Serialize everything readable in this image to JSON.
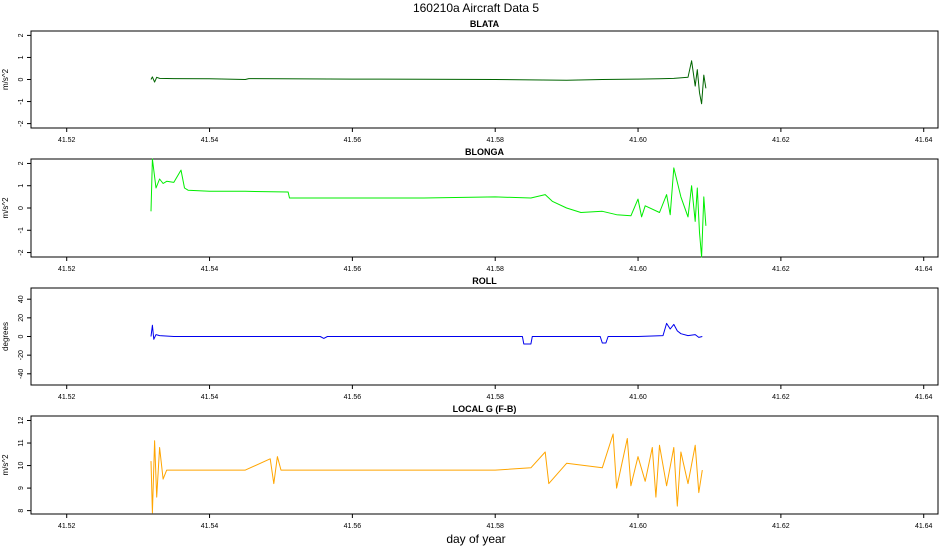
{
  "page": {
    "title": "160210a   Aircraft Data 5",
    "xlabel": "day of year"
  },
  "colors": {
    "blata": "#006400",
    "blonga": "#00ee00",
    "roll": "#0000ee",
    "localg": "#ffa500"
  },
  "chart_data": [
    {
      "type": "line",
      "title": "BLATA",
      "ylabel": "m/s^2",
      "xlim": [
        41.515,
        41.642
      ],
      "ylim": [
        -2.2,
        2.2
      ],
      "xticks": [
        41.52,
        41.54,
        41.56,
        41.58,
        41.6,
        41.62,
        41.64
      ],
      "xtick_labels": [
        "41.52",
        "41.54",
        "41.56",
        "41.58",
        "41.60",
        "41.62",
        "41.64"
      ],
      "yticks": [
        -2,
        -1,
        0,
        1,
        2
      ],
      "ytick_labels": [
        "-2",
        "-1",
        "0",
        "1",
        "2"
      ],
      "series": [
        {
          "color_key": "blata",
          "x": [
            41.5318,
            41.532,
            41.5323,
            41.5326,
            41.533,
            41.535,
            41.54,
            41.545,
            41.5455,
            41.55,
            41.56,
            41.57,
            41.58,
            41.585,
            41.59,
            41.595,
            41.6,
            41.603,
            41.605,
            41.607,
            41.6075,
            41.608,
            41.6083,
            41.6086,
            41.6089,
            41.6092,
            41.6095
          ],
          "y": [
            0.0,
            0.12,
            -0.12,
            0.1,
            0.05,
            0.04,
            0.03,
            0.0,
            0.04,
            0.03,
            0.02,
            0.01,
            0.0,
            -0.02,
            -0.03,
            0.0,
            0.02,
            0.03,
            0.05,
            0.1,
            0.85,
            -0.3,
            0.45,
            -0.6,
            -1.1,
            0.2,
            -0.4
          ]
        }
      ]
    },
    {
      "type": "line",
      "title": "BLONGA",
      "ylabel": "m/s^2",
      "xlim": [
        41.515,
        41.642
      ],
      "ylim": [
        -2.2,
        2.2
      ],
      "xticks": [
        41.52,
        41.54,
        41.56,
        41.58,
        41.6,
        41.62,
        41.64
      ],
      "xtick_labels": [
        "41.52",
        "41.54",
        "41.56",
        "41.58",
        "41.60",
        "41.62",
        "41.64"
      ],
      "yticks": [
        -2,
        -1,
        0,
        1,
        2
      ],
      "ytick_labels": [
        "-2",
        "-1",
        "0",
        "1",
        "2"
      ],
      "series": [
        {
          "color_key": "blonga",
          "x": [
            41.5318,
            41.532,
            41.5325,
            41.533,
            41.5335,
            41.534,
            41.535,
            41.536,
            41.5365,
            41.537,
            41.54,
            41.545,
            41.551,
            41.5512,
            41.56,
            41.57,
            41.58,
            41.585,
            41.587,
            41.588,
            41.59,
            41.592,
            41.595,
            41.597,
            41.599,
            41.6,
            41.6005,
            41.601,
            41.603,
            41.604,
            41.6045,
            41.605,
            41.606,
            41.607,
            41.6075,
            41.608,
            41.6083,
            41.6086,
            41.6089,
            41.6092,
            41.6095
          ],
          "y": [
            -0.15,
            2.2,
            0.9,
            1.3,
            1.1,
            1.2,
            1.15,
            1.7,
            0.9,
            0.8,
            0.75,
            0.75,
            0.72,
            0.45,
            0.45,
            0.45,
            0.5,
            0.45,
            0.6,
            0.3,
            0.0,
            -0.2,
            -0.15,
            -0.3,
            -0.35,
            0.4,
            -0.4,
            0.1,
            -0.2,
            0.6,
            -0.3,
            1.8,
            0.5,
            -0.4,
            1.0,
            -0.6,
            0.9,
            -1.1,
            -2.2,
            0.5,
            -0.8
          ]
        }
      ]
    },
    {
      "type": "line",
      "title": "ROLL",
      "ylabel": "degrees",
      "xlim": [
        41.515,
        41.642
      ],
      "ylim": [
        -52,
        52
      ],
      "xticks": [
        41.52,
        41.54,
        41.56,
        41.58,
        41.6,
        41.62,
        41.64
      ],
      "xtick_labels": [
        "41.52",
        "41.54",
        "41.56",
        "41.58",
        "41.60",
        "41.62",
        "41.64"
      ],
      "yticks": [
        -40,
        -20,
        0,
        20,
        40
      ],
      "ytick_labels": [
        "-40",
        "-20",
        "0",
        "20",
        "40"
      ],
      "series": [
        {
          "color_key": "roll",
          "x": [
            41.5318,
            41.532,
            41.5322,
            41.5325,
            41.533,
            41.535,
            41.54,
            41.5555,
            41.556,
            41.5565,
            41.57,
            41.58,
            41.5838,
            41.584,
            41.585,
            41.5852,
            41.59,
            41.5947,
            41.595,
            41.5955,
            41.5958,
            41.6,
            41.6035,
            41.604,
            41.6045,
            41.605,
            41.6055,
            41.606,
            41.607,
            41.608,
            41.6085,
            41.609
          ],
          "y": [
            0,
            12,
            -3,
            2,
            1,
            0,
            0,
            0,
            -2,
            0,
            0,
            0,
            0,
            -8,
            -8,
            0,
            0,
            0,
            -7,
            -7,
            0,
            0,
            1,
            14,
            8,
            13,
            6,
            3,
            1,
            2,
            -1,
            0
          ]
        }
      ]
    },
    {
      "type": "line",
      "title": "LOCAL G (F-B)",
      "ylabel": "m/s^2",
      "xlim": [
        41.515,
        41.642
      ],
      "ylim": [
        7.85,
        12.2
      ],
      "xticks": [
        41.52,
        41.54,
        41.56,
        41.58,
        41.6,
        41.62,
        41.64
      ],
      "xtick_labels": [
        "41.52",
        "41.54",
        "41.56",
        "41.58",
        "41.60",
        "41.62",
        "41.64"
      ],
      "yticks": [
        8,
        9,
        10,
        11,
        12
      ],
      "ytick_labels": [
        "8",
        "9",
        "10",
        "11",
        "12"
      ],
      "series": [
        {
          "color_key": "localg",
          "x": [
            41.5318,
            41.532,
            41.5323,
            41.5326,
            41.533,
            41.5335,
            41.534,
            41.537,
            41.54,
            41.545,
            41.5485,
            41.549,
            41.5495,
            41.55,
            41.56,
            41.57,
            41.58,
            41.585,
            41.587,
            41.5875,
            41.59,
            41.595,
            41.5965,
            41.597,
            41.5985,
            41.599,
            41.6,
            41.601,
            41.602,
            41.6025,
            41.603,
            41.604,
            41.605,
            41.6055,
            41.606,
            41.607,
            41.608,
            41.6085,
            41.609
          ],
          "y": [
            10.2,
            7.9,
            11.1,
            8.6,
            10.8,
            9.4,
            9.8,
            9.8,
            9.8,
            9.8,
            10.3,
            9.2,
            10.4,
            9.8,
            9.8,
            9.8,
            9.8,
            9.9,
            10.6,
            9.2,
            10.1,
            9.9,
            11.4,
            9.0,
            11.2,
            9.1,
            10.4,
            9.3,
            10.8,
            8.6,
            10.9,
            9.1,
            10.8,
            8.2,
            10.6,
            9.2,
            10.9,
            8.8,
            9.8
          ]
        }
      ]
    }
  ]
}
